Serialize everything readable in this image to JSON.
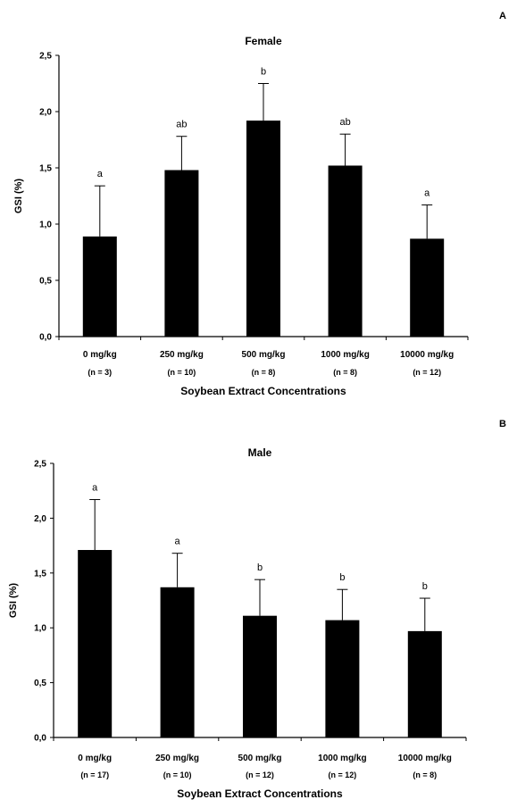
{
  "chart_data": [
    {
      "type": "bar",
      "panel": "A",
      "title": "Female",
      "xlabel": "Soybean Extract Concentrations",
      "ylabel": "GSI (%)",
      "ylim": [
        0,
        2.5
      ],
      "yticks": [
        "0,0",
        "0,5",
        "1,0",
        "1,5",
        "2,0",
        "2,5"
      ],
      "categories": [
        "0 mg/kg",
        "250 mg/kg",
        "500 mg/kg",
        "1000 mg/kg",
        "10000 mg/kg"
      ],
      "n_labels": [
        "(n = 3)",
        "(n = 10)",
        "(n = 8)",
        "(n = 8)",
        "(n = 12)"
      ],
      "values": [
        0.89,
        1.48,
        1.92,
        1.52,
        0.87
      ],
      "error": [
        0.45,
        0.3,
        0.33,
        0.28,
        0.3
      ],
      "significance": [
        "a",
        "ab",
        "b",
        "ab",
        "a"
      ],
      "bar_color": "#000000"
    },
    {
      "type": "bar",
      "panel": "B",
      "title": "Male",
      "xlabel": "Soybean Extract Concentrations",
      "ylabel": "GSI (%)",
      "ylim": [
        0,
        2.5
      ],
      "yticks": [
        "0,0",
        "0,5",
        "1,0",
        "1,5",
        "2,0",
        "2,5"
      ],
      "categories": [
        "0 mg/kg",
        "250 mg/kg",
        "500 mg/kg",
        "1000 mg/kg",
        "10000 mg/kg"
      ],
      "n_labels": [
        "(n = 17)",
        "(n = 10)",
        "(n = 12)",
        "(n = 12)",
        "(n = 8)"
      ],
      "values": [
        1.71,
        1.37,
        1.11,
        1.07,
        0.97
      ],
      "error": [
        0.46,
        0.31,
        0.33,
        0.28,
        0.3
      ],
      "significance": [
        "a",
        "a",
        "b",
        "b",
        "b"
      ],
      "bar_color": "#000000"
    }
  ]
}
